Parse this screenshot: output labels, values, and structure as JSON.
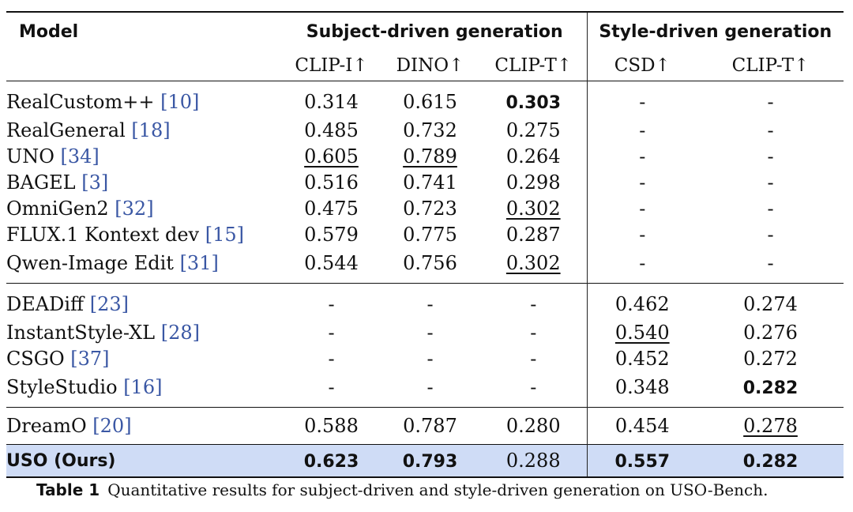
{
  "table": {
    "model_header": "Model",
    "group_subject": "Subject-driven generation",
    "group_style": "Style-driven generation",
    "metrics": [
      "CLIP-I↑",
      "DINO↑",
      "CLIP-T↑",
      "CSD↑",
      "CLIP-T↑"
    ],
    "groups": [
      [
        {
          "name": "RealCustom++ ",
          "ref": "[10]",
          "values": [
            "0.314",
            "0.615",
            "0.303",
            "-",
            "-"
          ],
          "bold": [
            2
          ],
          "underline": []
        },
        {
          "name": "RealGeneral ",
          "ref": "[18]",
          "values": [
            "0.485",
            "0.732",
            "0.275",
            "-",
            "-"
          ],
          "bold": [],
          "underline": []
        },
        {
          "name": "UNO ",
          "ref": "[34]",
          "values": [
            "0.605",
            "0.789",
            "0.264",
            "-",
            "-"
          ],
          "bold": [],
          "underline": [
            0,
            1
          ]
        },
        {
          "name": "BAGEL ",
          "ref": "[3]",
          "values": [
            "0.516",
            "0.741",
            "0.298",
            "-",
            "-"
          ],
          "bold": [],
          "underline": []
        },
        {
          "name": "OmniGen2 ",
          "ref": "[32]",
          "values": [
            "0.475",
            "0.723",
            "0.302",
            "-",
            "-"
          ],
          "bold": [],
          "underline": [
            2
          ]
        },
        {
          "name": "FLUX.1 Kontext dev ",
          "ref": "[15]",
          "values": [
            "0.579",
            "0.775",
            "0.287",
            "-",
            "-"
          ],
          "bold": [],
          "underline": []
        },
        {
          "name": "Qwen-Image Edit ",
          "ref": "[31]",
          "values": [
            "0.544",
            "0.756",
            "0.302",
            "-",
            "-"
          ],
          "bold": [],
          "underline": [
            2
          ]
        }
      ],
      [
        {
          "name": "DEADiff ",
          "ref": "[23]",
          "values": [
            "-",
            "-",
            "-",
            "0.462",
            "0.274"
          ],
          "bold": [],
          "underline": []
        },
        {
          "name": "InstantStyle-XL ",
          "ref": "[28]",
          "values": [
            "-",
            "-",
            "-",
            "0.540",
            "0.276"
          ],
          "bold": [],
          "underline": [
            3
          ]
        },
        {
          "name": "CSGO ",
          "ref": "[37]",
          "values": [
            "-",
            "-",
            "-",
            "0.452",
            "0.272"
          ],
          "bold": [],
          "underline": []
        },
        {
          "name": "StyleStudio ",
          "ref": "[16]",
          "values": [
            "-",
            "-",
            "-",
            "0.348",
            "0.282"
          ],
          "bold": [
            4
          ],
          "underline": []
        }
      ],
      [
        {
          "name": "DreamO ",
          "ref": "[20]",
          "values": [
            "0.588",
            "0.787",
            "0.280",
            "0.454",
            "0.278"
          ],
          "bold": [],
          "underline": [
            4
          ]
        }
      ],
      [
        {
          "name": "USO (Ours)",
          "ref": "",
          "values": [
            "0.623",
            "0.793",
            "0.288",
            "0.557",
            "0.282"
          ],
          "bold": [
            0,
            1,
            3,
            4
          ],
          "underline": [],
          "highlight": true,
          "name_bold": true
        }
      ]
    ]
  },
  "caption": {
    "label": "Table 1",
    "text": "Quantitative results for subject-driven and style-driven generation on USO-Bench."
  },
  "colors": {
    "highlight_row": "#cfdcf6",
    "reference_link": "#3a57a4"
  }
}
